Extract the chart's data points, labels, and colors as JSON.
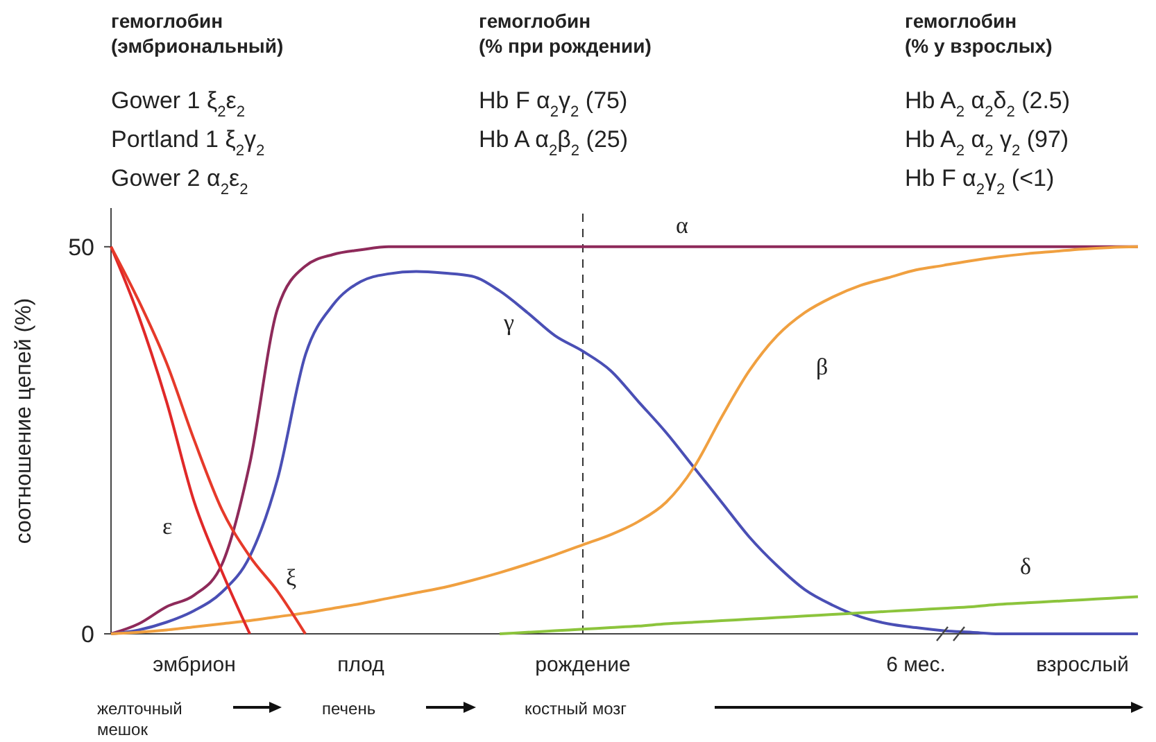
{
  "chart_data": {
    "type": "line",
    "ylabel": "соотношение цепей (%)",
    "ylim": [
      0,
      55
    ],
    "yticks": [
      0,
      50
    ],
    "categories": [
      null,
      null,
      null,
      "эмбрион",
      null,
      null,
      null,
      null,
      null,
      "плод",
      null,
      null,
      null,
      null,
      null,
      null,
      null,
      "рождение",
      null,
      null,
      null,
      null,
      null,
      null,
      null,
      null,
      null,
      null,
      null,
      "6 мес.",
      null,
      null,
      null,
      null,
      null,
      "взрослый",
      null,
      null
    ],
    "ref_lines": [
      {
        "axis": "x",
        "value": "рождение",
        "line_style": "dashed",
        "color": "#333333"
      }
    ],
    "marker": "none",
    "line_style": "solid",
    "series": [
      {
        "name": "α",
        "color": "#8e2a5a",
        "values": [
          0,
          1.3,
          3.5,
          5,
          9,
          22,
          42,
          47.5,
          49,
          49.6,
          50,
          50,
          50,
          50,
          50,
          50,
          50,
          50,
          50,
          50,
          50,
          50,
          50,
          50,
          50,
          50,
          50,
          50,
          50,
          50,
          50,
          50,
          50,
          50,
          50,
          50,
          50,
          50
        ]
      },
      {
        "name": "γ",
        "color": "#4a4fb5",
        "values": [
          0,
          0.5,
          1.5,
          3,
          5.4,
          10,
          20,
          36,
          42.5,
          45.5,
          46.5,
          46.8,
          46.6,
          46.2,
          44.3,
          41.5,
          38.5,
          36.5,
          34,
          30,
          26,
          21.5,
          17,
          12.5,
          8.8,
          5.7,
          3.7,
          2.2,
          1.3,
          0.8,
          0.4,
          0.2,
          0,
          0,
          0,
          0,
          0,
          0
        ]
      },
      {
        "name": "β",
        "color": "#f0a040",
        "values": [
          0,
          0.2,
          0.5,
          0.9,
          1.3,
          1.7,
          2.2,
          2.7,
          3.3,
          3.9,
          4.6,
          5.3,
          6,
          6.9,
          7.9,
          9,
          10.2,
          11.5,
          12.8,
          14.5,
          17,
          21.5,
          28,
          34,
          38.5,
          41.5,
          43.5,
          45,
          46,
          47,
          47.6,
          48.2,
          48.7,
          49.1,
          49.4,
          49.7,
          49.9,
          50
        ]
      },
      {
        "name": "δ",
        "color": "#8cc43c",
        "values": [
          null,
          null,
          null,
          null,
          null,
          null,
          null,
          null,
          null,
          null,
          null,
          null,
          null,
          null,
          0,
          0.2,
          0.4,
          0.6,
          0.8,
          1,
          1.3,
          1.5,
          1.7,
          1.9,
          2.1,
          2.3,
          2.5,
          2.7,
          2.9,
          3.1,
          3.3,
          3.5,
          3.8,
          4,
          4.2,
          4.4,
          4.6,
          4.8
        ]
      },
      {
        "name": "ε",
        "color": "#e02828",
        "values": [
          50,
          41,
          30,
          17,
          8,
          0,
          null,
          null,
          null,
          null,
          null,
          null,
          null,
          null,
          null,
          null,
          null,
          null,
          null,
          null,
          null,
          null,
          null,
          null,
          null,
          null,
          null,
          null,
          null,
          null,
          null,
          null,
          null,
          null,
          null,
          null,
          null,
          null
        ]
      },
      {
        "name": "ξ",
        "color": "#e63a2a",
        "values": [
          50,
          43,
          35,
          25,
          16,
          10,
          5.5,
          0,
          null,
          null,
          null,
          null,
          null,
          null,
          null,
          null,
          null,
          null,
          null,
          null,
          null,
          null,
          null,
          null,
          null,
          null,
          null,
          null,
          null,
          null,
          null,
          null,
          null,
          null,
          null,
          null,
          null,
          null
        ]
      }
    ],
    "annotations": [
      "гемоглобин",
      "(эмбриональный)",
      "Gower 1 ξ$_{2}$ε$_{2}$",
      "Portland 1 ξ$_{2}$γ$_{2}$",
      "Gower 2 α$_{2}$ε$_{2}$",
      "гемоглобин",
      "(% при рождении)",
      "Hb F α$_{2}$γ$_{2}$ (75)",
      "Hb A α$_{2}$β$_{2}$ (25)",
      "гемоглобин",
      "(% у взрослых)",
      "Hb A$_{2}$ α$_{2}$δ$_{2}$ (2.5)",
      "Hb A$_{2}$ α$_{2}$ γ$_{2}$ (97)",
      "Hb F α$_{2}$γ$_{2}$ (<1)",
      "желточный",
      "мешок",
      "печень",
      "костный мозг"
    ]
  }
}
